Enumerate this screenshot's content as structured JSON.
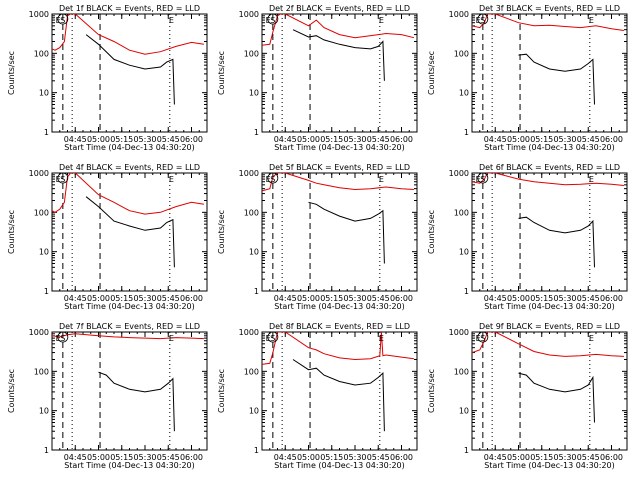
{
  "chart_data": [
    {
      "type": "line",
      "title": "Det 1f BLACK = Events, RED = LLD",
      "xlabel": "Start Time (04-Dec-13 04:30:20)",
      "ylabel": "Counts/sec",
      "ylog": true,
      "ylim": [
        1,
        1000
      ],
      "xlim": [
        "04:30",
        "06:10"
      ],
      "yticks": [
        "1",
        "10",
        "100",
        "1000"
      ],
      "xticks": [
        "04:45",
        "05:00",
        "05:15",
        "05:30",
        "05:45",
        "06:00"
      ],
      "markers": [
        {
          "time": "04:34",
          "label": "E"
        },
        {
          "time": "04:37",
          "label": "S"
        },
        {
          "time": "05:47",
          "label": "E"
        }
      ],
      "dashed_lines": [
        "04:37",
        "05:01"
      ],
      "dotted_lines": [
        "04:43",
        "05:46"
      ],
      "series": [
        {
          "name": "Events",
          "color": "#000000",
          "x": [
            "04:52",
            "05:00",
            "05:10",
            "05:20",
            "05:30",
            "05:40",
            "05:44",
            "05:48",
            "05:49"
          ],
          "y": [
            300,
            170,
            70,
            50,
            40,
            45,
            60,
            70,
            5
          ]
        },
        {
          "name": "LLD",
          "color": "#e00000",
          "x": [
            "04:30",
            "04:32",
            "04:35",
            "04:38",
            "04:40",
            "04:42",
            "04:45",
            "05:00",
            "05:10",
            "05:20",
            "05:30",
            "05:40",
            "05:50",
            "06:00",
            "06:08"
          ],
          "y": [
            130,
            120,
            140,
            200,
            900,
            1000,
            1000,
            300,
            200,
            120,
            95,
            110,
            150,
            190,
            170
          ]
        }
      ]
    },
    {
      "type": "line",
      "title": "Det 2f BLACK = Events, RED = LLD",
      "xlabel": "Start Time (04-Dec-13 04:30:20)",
      "ylabel": "Counts/sec",
      "ylog": true,
      "ylim": [
        1,
        1000
      ],
      "xlim": [
        "04:30",
        "06:10"
      ],
      "yticks": [
        "1",
        "10",
        "100",
        "1000"
      ],
      "xticks": [
        "04:45",
        "05:00",
        "05:15",
        "05:30",
        "05:45",
        "06:00"
      ],
      "markers": [
        {
          "time": "04:34",
          "label": "E"
        },
        {
          "time": "04:37",
          "label": "S"
        },
        {
          "time": "05:47",
          "label": "E"
        }
      ],
      "dashed_lines": [
        "04:37",
        "05:01"
      ],
      "dotted_lines": [
        "04:43",
        "05:46"
      ],
      "series": [
        {
          "name": "Events",
          "color": "#000000",
          "x": [
            "04:50",
            "05:00",
            "05:05",
            "05:10",
            "05:20",
            "05:30",
            "05:40",
            "05:45",
            "05:48",
            "05:49"
          ],
          "y": [
            400,
            260,
            280,
            220,
            170,
            140,
            130,
            150,
            200,
            20
          ]
        },
        {
          "name": "LLD",
          "color": "#e00000",
          "x": [
            "04:30",
            "04:35",
            "04:37",
            "04:40",
            "04:42",
            "04:45",
            "05:00",
            "05:05",
            "05:10",
            "05:20",
            "05:30",
            "05:45",
            "05:50",
            "06:00",
            "06:08"
          ],
          "y": [
            160,
            170,
            350,
            900,
            1000,
            1000,
            500,
            700,
            450,
            300,
            250,
            300,
            320,
            300,
            250
          ]
        }
      ]
    },
    {
      "type": "line",
      "title": "Det 3f BLACK = Events, RED = LLD",
      "xlabel": "Start Time (04-Dec-13 04:30:20)",
      "ylabel": "Counts/sec",
      "ylog": true,
      "ylim": [
        1,
        1000
      ],
      "xlim": [
        "04:30",
        "06:10"
      ],
      "yticks": [
        "1",
        "10",
        "100",
        "1000"
      ],
      "xticks": [
        "04:45",
        "05:00",
        "05:15",
        "05:30",
        "05:45",
        "06:00"
      ],
      "markers": [
        {
          "time": "04:34",
          "label": "E"
        },
        {
          "time": "04:37",
          "label": "S"
        },
        {
          "time": "05:47",
          "label": "E"
        }
      ],
      "dashed_lines": [
        "04:37",
        "05:01"
      ],
      "dotted_lines": [
        "04:43",
        "05:46"
      ],
      "series": [
        {
          "name": "Events",
          "color": "#000000",
          "x": [
            "05:00",
            "05:05",
            "05:10",
            "05:20",
            "05:30",
            "05:40",
            "05:45",
            "05:48",
            "05:49"
          ],
          "y": [
            90,
            95,
            60,
            40,
            35,
            40,
            55,
            70,
            5
          ]
        },
        {
          "name": "LLD",
          "color": "#e00000",
          "x": [
            "04:30",
            "04:35",
            "04:38",
            "04:40",
            "04:45",
            "05:00",
            "05:10",
            "05:20",
            "05:30",
            "05:40",
            "05:50",
            "06:00",
            "06:08"
          ],
          "y": [
            500,
            450,
            600,
            1000,
            1000,
            600,
            500,
            520,
            480,
            450,
            500,
            420,
            380
          ]
        }
      ]
    },
    {
      "type": "line",
      "title": "Det 4f BLACK = Events, RED = LLD",
      "xlabel": "Start Time (04-Dec-13 04:30:20)",
      "ylabel": "Counts/sec",
      "ylog": true,
      "ylim": [
        1,
        1000
      ],
      "xlim": [
        "04:30",
        "06:10"
      ],
      "yticks": [
        "1",
        "10",
        "100",
        "1000"
      ],
      "xticks": [
        "04:45",
        "05:00",
        "05:15",
        "05:30",
        "05:45",
        "06:00"
      ],
      "markers": [
        {
          "time": "04:34",
          "label": "E"
        },
        {
          "time": "04:37",
          "label": "S"
        },
        {
          "time": "05:47",
          "label": "E"
        }
      ],
      "dashed_lines": [
        "04:37",
        "05:01"
      ],
      "dotted_lines": [
        "04:43",
        "05:46"
      ],
      "series": [
        {
          "name": "Events",
          "color": "#000000",
          "x": [
            "04:52",
            "05:00",
            "05:10",
            "05:20",
            "05:30",
            "05:40",
            "05:44",
            "05:48",
            "05:49"
          ],
          "y": [
            250,
            140,
            60,
            45,
            35,
            40,
            55,
            65,
            4
          ]
        },
        {
          "name": "LLD",
          "color": "#e00000",
          "x": [
            "04:30",
            "04:32",
            "04:35",
            "04:38",
            "04:40",
            "04:42",
            "04:45",
            "05:00",
            "05:10",
            "05:20",
            "05:30",
            "05:40",
            "05:50",
            "06:00",
            "06:08"
          ],
          "y": [
            110,
            100,
            120,
            180,
            800,
            1000,
            1000,
            280,
            180,
            110,
            90,
            100,
            140,
            180,
            160
          ]
        }
      ]
    },
    {
      "type": "line",
      "title": "Det 5f BLACK = Events, RED = LLD",
      "xlabel": "Start Time (04-Dec-13 04:30:20)",
      "ylabel": "Counts/sec",
      "ylog": true,
      "ylim": [
        1,
        1000
      ],
      "xlim": [
        "04:30",
        "06:10"
      ],
      "yticks": [
        "1",
        "10",
        "100",
        "1000"
      ],
      "xticks": [
        "04:45",
        "05:00",
        "05:15",
        "05:30",
        "05:45",
        "06:00"
      ],
      "markers": [
        {
          "time": "04:34",
          "label": "E"
        },
        {
          "time": "04:37",
          "label": "S"
        },
        {
          "time": "05:47",
          "label": "E"
        }
      ],
      "dashed_lines": [
        "04:37",
        "05:01"
      ],
      "dotted_lines": [
        "04:43",
        "05:46"
      ],
      "series": [
        {
          "name": "Events",
          "color": "#000000",
          "x": [
            "05:00",
            "05:05",
            "05:10",
            "05:20",
            "05:30",
            "05:40",
            "05:45",
            "05:48",
            "05:49"
          ],
          "y": [
            180,
            160,
            120,
            80,
            60,
            70,
            90,
            110,
            5
          ]
        },
        {
          "name": "LLD",
          "color": "#e00000",
          "x": [
            "04:30",
            "04:35",
            "04:37",
            "04:40",
            "04:45",
            "05:00",
            "05:05",
            "05:10",
            "05:20",
            "05:30",
            "05:40",
            "05:50",
            "06:00",
            "06:08"
          ],
          "y": [
            350,
            400,
            800,
            1000,
            1000,
            650,
            550,
            500,
            420,
            380,
            400,
            440,
            400,
            380
          ]
        }
      ]
    },
    {
      "type": "line",
      "title": "Det 6f BLACK = Events, RED = LLD",
      "xlabel": "Start Time (04-Dec-13 04:30:20)",
      "ylabel": "Counts/sec",
      "ylog": true,
      "ylim": [
        1,
        1000
      ],
      "xlim": [
        "04:30",
        "06:10"
      ],
      "yticks": [
        "1",
        "10",
        "100",
        "1000"
      ],
      "xticks": [
        "04:45",
        "05:00",
        "05:15",
        "05:30",
        "05:45",
        "06:00"
      ],
      "markers": [
        {
          "time": "04:34",
          "label": "E"
        },
        {
          "time": "04:37",
          "label": "S"
        },
        {
          "time": "05:47",
          "label": "E"
        }
      ],
      "dashed_lines": [
        "04:37",
        "05:01"
      ],
      "dotted_lines": [
        "04:43",
        "05:46"
      ],
      "series": [
        {
          "name": "Events",
          "color": "#000000",
          "x": [
            "05:00",
            "05:05",
            "05:10",
            "05:20",
            "05:30",
            "05:40",
            "05:45",
            "05:48",
            "05:49"
          ],
          "y": [
            70,
            75,
            55,
            35,
            30,
            35,
            45,
            60,
            4
          ]
        },
        {
          "name": "LLD",
          "color": "#e00000",
          "x": [
            "04:30",
            "04:35",
            "04:38",
            "04:40",
            "04:45",
            "05:00",
            "05:10",
            "05:20",
            "05:30",
            "05:40",
            "05:50",
            "06:00",
            "06:08"
          ],
          "y": [
            600,
            550,
            700,
            1000,
            1000,
            700,
            600,
            550,
            500,
            520,
            550,
            520,
            480
          ]
        }
      ]
    },
    {
      "type": "line",
      "title": "Det 7f BLACK = Events, RED = LLD",
      "xlabel": "Start Time (04-Dec-13 04:30:20)",
      "ylabel": "Counts/sec",
      "ylog": true,
      "ylim": [
        1,
        1000
      ],
      "xlim": [
        "04:30",
        "06:10"
      ],
      "yticks": [
        "1",
        "10",
        "100",
        "1000"
      ],
      "xticks": [
        "04:45",
        "05:00",
        "05:15",
        "05:30",
        "05:45",
        "06:00"
      ],
      "markers": [
        {
          "time": "04:34",
          "label": "E"
        },
        {
          "time": "04:37",
          "label": "S"
        },
        {
          "time": "05:47",
          "label": "E"
        }
      ],
      "dashed_lines": [
        "04:37",
        "05:01"
      ],
      "dotted_lines": [
        "04:43",
        "05:46"
      ],
      "series": [
        {
          "name": "Events",
          "color": "#000000",
          "x": [
            "05:00",
            "05:05",
            "05:10",
            "05:20",
            "05:30",
            "05:40",
            "05:45",
            "05:48",
            "05:49"
          ],
          "y": [
            95,
            80,
            50,
            35,
            30,
            35,
            50,
            65,
            3
          ]
        },
        {
          "name": "LLD",
          "color": "#e00000",
          "x": [
            "04:30",
            "04:35",
            "04:40",
            "04:45",
            "05:00",
            "05:10",
            "05:20",
            "05:30",
            "05:40",
            "05:50",
            "06:00",
            "06:08"
          ],
          "y": [
            800,
            750,
            850,
            900,
            800,
            750,
            720,
            700,
            680,
            720,
            700,
            680
          ]
        }
      ]
    },
    {
      "type": "line",
      "title": "Det 8f BLACK = Events, RED = LLD",
      "xlabel": "Start Time (04-Dec-13 04:30:20)",
      "ylabel": "Counts/sec",
      "ylog": true,
      "ylim": [
        1,
        1000
      ],
      "xlim": [
        "04:30",
        "06:10"
      ],
      "yticks": [
        "1",
        "10",
        "100",
        "1000"
      ],
      "xticks": [
        "04:45",
        "05:00",
        "05:15",
        "05:30",
        "05:45",
        "06:00"
      ],
      "markers": [
        {
          "time": "04:34",
          "label": "E"
        },
        {
          "time": "04:37",
          "label": "S"
        },
        {
          "time": "05:47",
          "label": "E"
        }
      ],
      "dashed_lines": [
        "04:37",
        "05:01"
      ],
      "dotted_lines": [
        "04:43",
        "05:46"
      ],
      "series": [
        {
          "name": "Events",
          "color": "#000000",
          "x": [
            "04:50",
            "05:00",
            "05:05",
            "05:10",
            "05:20",
            "05:30",
            "05:40",
            "05:45",
            "05:48",
            "05:49"
          ],
          "y": [
            200,
            110,
            120,
            80,
            55,
            45,
            50,
            70,
            90,
            3
          ]
        },
        {
          "name": "LLD",
          "color": "#e00000",
          "x": [
            "04:30",
            "04:35",
            "04:37",
            "04:40",
            "04:45",
            "05:00",
            "05:05",
            "05:10",
            "05:20",
            "05:30",
            "05:40",
            "05:46",
            "05:47",
            "05:48",
            "05:50",
            "06:00",
            "06:08"
          ],
          "y": [
            150,
            160,
            300,
            1000,
            1000,
            400,
            350,
            280,
            220,
            200,
            210,
            250,
            1000,
            250,
            260,
            230,
            210
          ]
        }
      ]
    },
    {
      "type": "line",
      "title": "Det 9f BLACK = Events, RED = LLD",
      "xlabel": "Start Time (04-Dec-13 04:30:20)",
      "ylabel": "Counts/sec",
      "ylog": true,
      "ylim": [
        1,
        1000
      ],
      "xlim": [
        "04:30",
        "06:10"
      ],
      "yticks": [
        "1",
        "10",
        "100",
        "1000"
      ],
      "xticks": [
        "04:45",
        "05:00",
        "05:15",
        "05:30",
        "05:45",
        "06:00"
      ],
      "markers": [
        {
          "time": "04:34",
          "label": "E"
        },
        {
          "time": "04:37",
          "label": "S"
        },
        {
          "time": "05:47",
          "label": "E"
        }
      ],
      "dashed_lines": [
        "04:37",
        "05:01"
      ],
      "dotted_lines": [
        "04:43",
        "05:46"
      ],
      "series": [
        {
          "name": "Events",
          "color": "#000000",
          "x": [
            "05:00",
            "05:05",
            "05:10",
            "05:20",
            "05:30",
            "05:40",
            "05:45",
            "05:48",
            "05:49"
          ],
          "y": [
            90,
            80,
            50,
            35,
            30,
            35,
            45,
            70,
            5
          ]
        },
        {
          "name": "LLD",
          "color": "#e00000",
          "x": [
            "04:30",
            "04:35",
            "04:38",
            "04:40",
            "04:45",
            "05:00",
            "05:10",
            "05:20",
            "05:30",
            "05:40",
            "05:50",
            "06:00",
            "06:08"
          ],
          "y": [
            300,
            350,
            600,
            1000,
            1000,
            500,
            320,
            260,
            240,
            250,
            270,
            250,
            240
          ]
        }
      ]
    }
  ]
}
